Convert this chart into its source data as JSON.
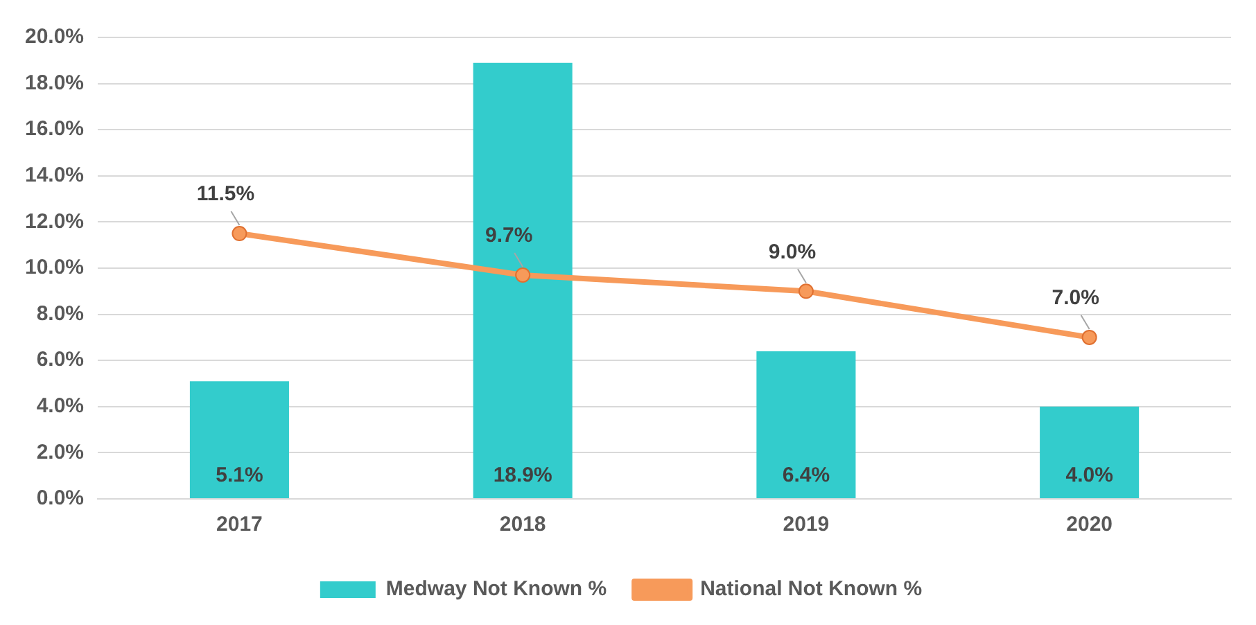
{
  "chart_data": {
    "type": "bar",
    "categories": [
      "2017",
      "2018",
      "2019",
      "2020"
    ],
    "series": [
      {
        "name": "Medway Not Known %",
        "color": "#33cccc",
        "values": [
          5.1,
          18.9,
          6.4,
          4.0
        ],
        "value_labels": [
          "5.1%",
          "18.9%",
          "6.4%",
          "4.0%"
        ]
      },
      {
        "name": "National Not Known %",
        "type": "line",
        "color": "#f79a5a",
        "values": [
          11.5,
          9.7,
          9.0,
          7.0
        ],
        "value_labels": [
          "11.5%",
          "9.7%",
          "9.0%",
          "7.0%"
        ]
      }
    ],
    "ylim": [
      0,
      20
    ],
    "yticks": [
      {
        "value": 0,
        "label": "0.0%"
      },
      {
        "value": 2,
        "label": "2.0%"
      },
      {
        "value": 4,
        "label": "4.0%"
      },
      {
        "value": 6,
        "label": "6.0%"
      },
      {
        "value": 8,
        "label": "8.0%"
      },
      {
        "value": 10,
        "label": "10.0%"
      },
      {
        "value": 12,
        "label": "12.0%"
      },
      {
        "value": 14,
        "label": "14.0%"
      },
      {
        "value": 16,
        "label": "16.0%"
      },
      {
        "value": 18,
        "label": "18.0%"
      },
      {
        "value": 20,
        "label": "20.0%"
      }
    ],
    "grid": "y",
    "legend": "bottom",
    "marker": "circle",
    "line_style": "solid"
  }
}
